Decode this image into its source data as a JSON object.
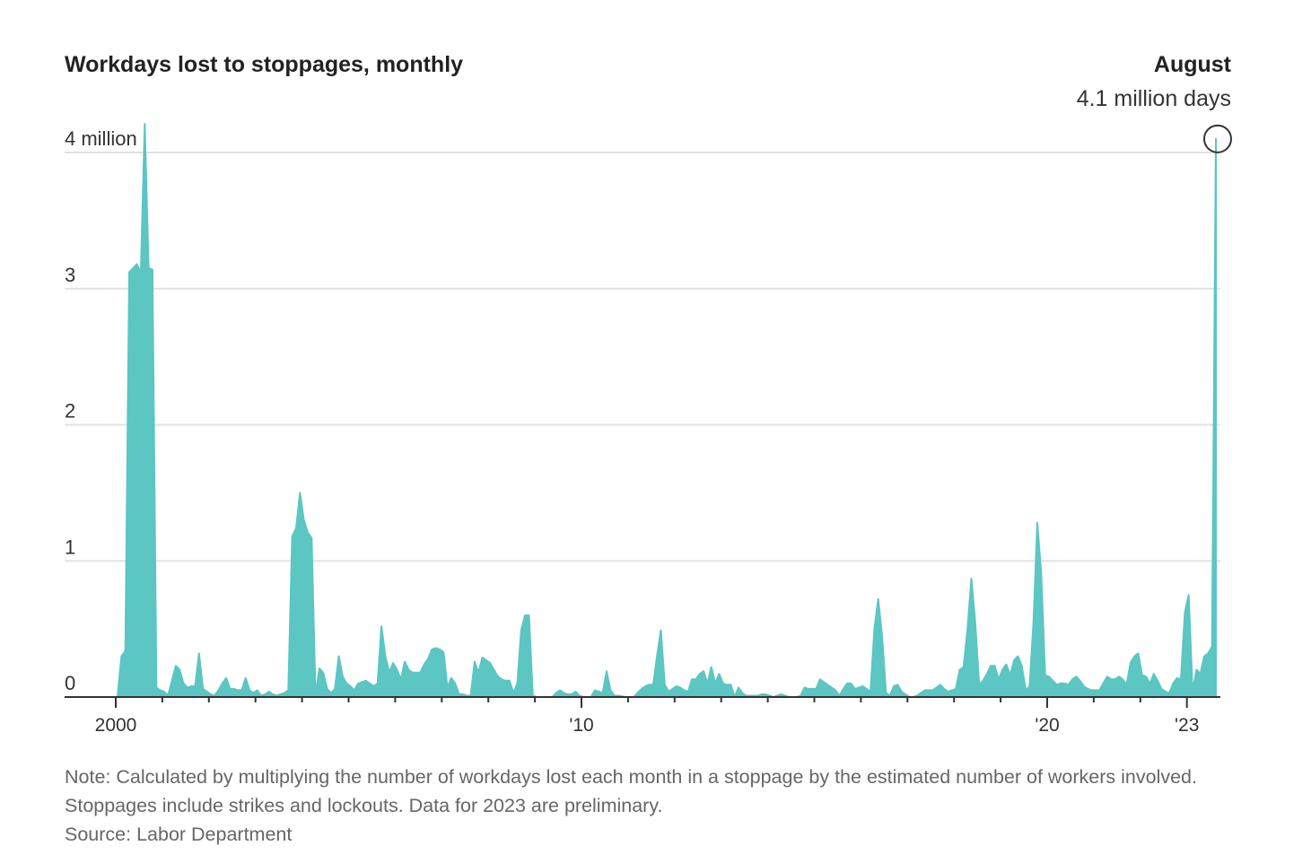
{
  "chart_data": {
    "type": "area",
    "title": "Workdays lost to stoppages, monthly",
    "annotation": {
      "label": "August",
      "value": "4.1 million days"
    },
    "start": "2000-01",
    "frequency": "monthly",
    "unit": "million workdays",
    "ylim": [
      0,
      4
    ],
    "yticks": [
      {
        "value": 0,
        "label": "0"
      },
      {
        "value": 1,
        "label": "1"
      },
      {
        "value": 2,
        "label": "2"
      },
      {
        "value": 3,
        "label": "3"
      },
      {
        "value": 4,
        "label": "4 million"
      }
    ],
    "xticks": [
      {
        "year": 2000,
        "label": "2000"
      },
      {
        "year": 2010,
        "label": "'10"
      },
      {
        "year": 2020,
        "label": "'20"
      },
      {
        "year": 2023,
        "label": "'23"
      }
    ],
    "xlim": [
      "2000-01",
      "2023-08"
    ],
    "grid": true,
    "color": "#5bc6c2",
    "values": [
      0,
      0.3,
      0.34,
      3.12,
      3.15,
      3.18,
      3.11,
      4.21,
      3.15,
      3.14,
      0.07,
      0.05,
      0.04,
      0.01,
      0.12,
      0.23,
      0.2,
      0.1,
      0.07,
      0.08,
      0.08,
      0.32,
      0.06,
      0.04,
      0.02,
      0.01,
      0.05,
      0.1,
      0.14,
      0.06,
      0.06,
      0.05,
      0.05,
      0.14,
      0.05,
      0.03,
      0.05,
      0.01,
      0.02,
      0.04,
      0.02,
      0.01,
      0.02,
      0.03,
      0.05,
      1.18,
      1.24,
      1.5,
      1.3,
      1.21,
      1.17,
      0.01,
      0.21,
      0.18,
      0.06,
      0.03,
      0.06,
      0.3,
      0.15,
      0.1,
      0.08,
      0.05,
      0.1,
      0.11,
      0.12,
      0.1,
      0.08,
      0.1,
      0.52,
      0.3,
      0.18,
      0.25,
      0.2,
      0.13,
      0.26,
      0.2,
      0.18,
      0.18,
      0.18,
      0.24,
      0.28,
      0.35,
      0.36,
      0.35,
      0.33,
      0.07,
      0.14,
      0.1,
      0.02,
      0.02,
      0.01,
      0.01,
      0.26,
      0.18,
      0.29,
      0.27,
      0.25,
      0.2,
      0.15,
      0.13,
      0.12,
      0.12,
      0.03,
      0.1,
      0.49,
      0.6,
      0.6,
      0.01,
      0,
      0,
      0,
      0,
      0,
      0.03,
      0.05,
      0.03,
      0.02,
      0.02,
      0.04,
      0.01,
      0,
      0,
      0,
      0.05,
      0.04,
      0.03,
      0.19,
      0.05,
      0.01,
      0.01,
      0.005,
      0,
      0,
      0,
      0.03,
      0.06,
      0.08,
      0.09,
      0.09,
      0.3,
      0.49,
      0.09,
      0.04,
      0.06,
      0.08,
      0.07,
      0.05,
      0.04,
      0.13,
      0.13,
      0.17,
      0.19,
      0.1,
      0.22,
      0.1,
      0.17,
      0.1,
      0.09,
      0.09,
      0,
      0.07,
      0.03,
      0.01,
      0.01,
      0.01,
      0.01,
      0.02,
      0.02,
      0.01,
      0,
      0.01,
      0.02,
      0.01,
      0,
      0,
      0,
      0.01,
      0.07,
      0.06,
      0.06,
      0.06,
      0.13,
      0.11,
      0.09,
      0.07,
      0.05,
      0.01,
      0.06,
      0.1,
      0.1,
      0.06,
      0.07,
      0.08,
      0.06,
      0.04,
      0.5,
      0.72,
      0.45,
      0.03,
      0.01,
      0.08,
      0.09,
      0.04,
      0.02,
      0,
      0,
      0.01,
      0.03,
      0.05,
      0.05,
      0.05,
      0.07,
      0.09,
      0.06,
      0.04,
      0.05,
      0.06,
      0.2,
      0.22,
      0.5,
      0.87,
      0.55,
      0.09,
      0.12,
      0.17,
      0.23,
      0.23,
      0.13,
      0.2,
      0.24,
      0.16,
      0.27,
      0.3,
      0.23,
      0.05,
      0.08,
      0.55,
      1.28,
      0.9,
      0.16,
      0.15,
      0.12,
      0.09,
      0.1,
      0.1,
      0.09,
      0.13,
      0.15,
      0.12,
      0.08,
      0.06,
      0.05,
      0.05,
      0.05,
      0.1,
      0.15,
      0.13,
      0.13,
      0.15,
      0.13,
      0.09,
      0.25,
      0.3,
      0.32,
      0.16,
      0.15,
      0.1,
      0.17,
      0.12,
      0.06,
      0.04,
      0.03,
      0.1,
      0.14,
      0.13,
      0.62,
      0.75,
      0.04,
      0.2,
      0.17,
      0.3,
      0.32,
      0.37,
      4.1
    ]
  },
  "note": "Note: Calculated by multiplying the number of workdays lost each month in a stoppage by the estimated number of workers involved. Stoppages include strikes and lockouts. Data for 2023 are preliminary.",
  "source": "Source: Labor Department"
}
